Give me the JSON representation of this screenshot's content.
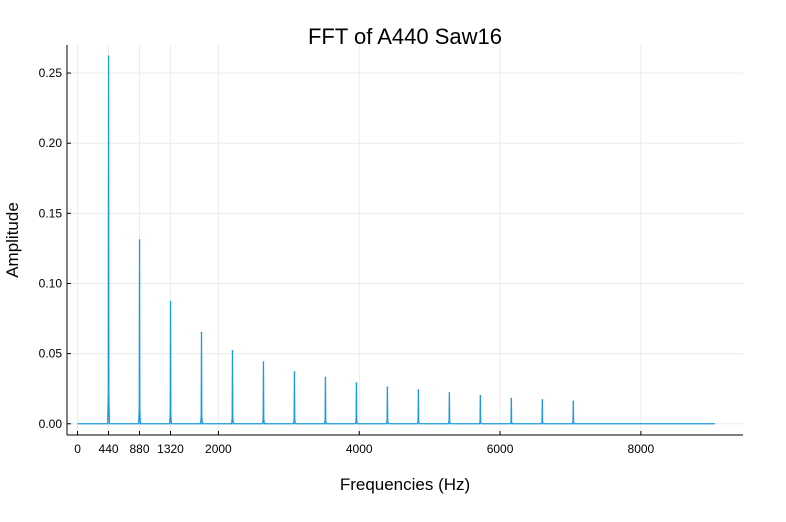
{
  "chart_data": {
    "type": "line",
    "title": "FFT of A440 Saw16",
    "xlabel": "Frequencies (Hz)",
    "ylabel": "Amplitude",
    "xlim": [
      -150,
      9450
    ],
    "ylim": [
      -0.008,
      0.27
    ],
    "xticks": [
      0,
      440,
      880,
      1320,
      2000,
      4000,
      6000,
      8000
    ],
    "xtick_labels": [
      "0",
      "440",
      "880",
      "1320",
      "2000",
      "4000",
      "6000",
      "8000"
    ],
    "yticks": [
      0.0,
      0.05,
      0.1,
      0.15,
      0.2,
      0.25
    ],
    "ytick_labels": [
      "0.00",
      "0.05",
      "0.10",
      "0.15",
      "0.20",
      "0.25"
    ],
    "grid": true,
    "legend": "none",
    "color": "#1a9ae0",
    "x_range": [
      0,
      9050
    ],
    "peaks": {
      "x": [
        440,
        880,
        1320,
        1760,
        2200,
        2640,
        3080,
        3520,
        3960,
        4400,
        4840,
        5280,
        5720,
        6160,
        6600,
        7040
      ],
      "y": [
        0.262,
        0.131,
        0.087,
        0.065,
        0.052,
        0.044,
        0.037,
        0.033,
        0.029,
        0.026,
        0.024,
        0.022,
        0.02,
        0.018,
        0.017,
        0.016
      ]
    },
    "baseline": 0.0
  }
}
